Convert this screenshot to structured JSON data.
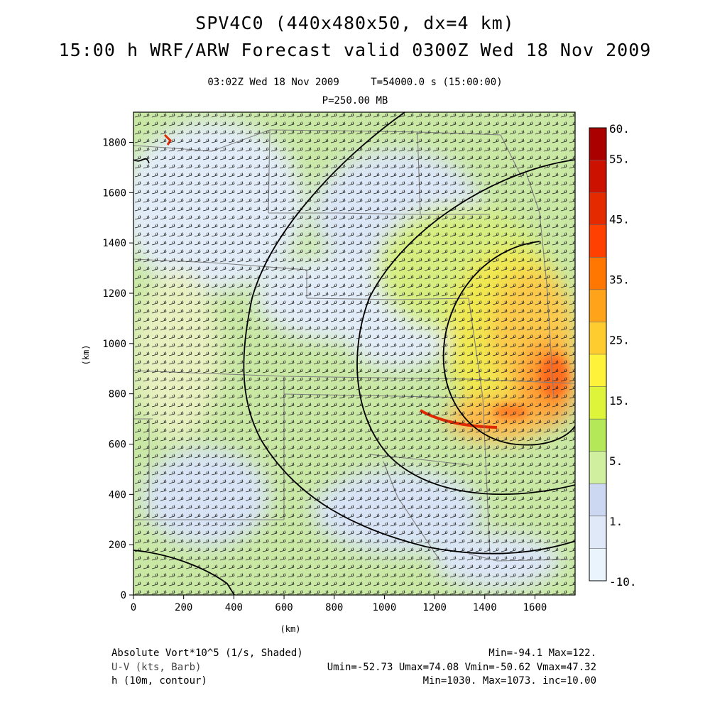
{
  "title_line1": "SPV4C0 (440x480x50, dx=4 km)",
  "title_line2": "15:00 h WRF/ARW Forecast valid 0300Z Wed 18 Nov 2009",
  "subtitle_time": "03:02Z Wed 18 Nov 2009",
  "subtitle_t": "T=54000.0 s (15:00:00)",
  "pressure_level": "P=250.00 MB",
  "chart_data": {
    "type": "heatmap",
    "xlabel": "(km)",
    "ylabel": "(km)",
    "xlim": [
      0,
      1760
    ],
    "ylim": [
      0,
      1920
    ],
    "x_ticks": [
      "0",
      "200",
      "400",
      "600",
      "800",
      "1000",
      "1200",
      "1400",
      "1600"
    ],
    "y_ticks": [
      "0",
      "200",
      "400",
      "600",
      "800",
      "1000",
      "1200",
      "1400",
      "1600",
      "1800"
    ],
    "colorbar": {
      "labels": [
        "60.",
        "55.",
        "45.",
        "35.",
        "25.",
        "15.",
        "5.",
        "1.",
        "-10."
      ],
      "colors": [
        "#aa0000",
        "#cc1100",
        "#e62a00",
        "#ff4000",
        "#ff7700",
        "#ffa41a",
        "#ffcc30",
        "#fff23a",
        "#ddf43a",
        "#b4e858",
        "#d0f0a0",
        "#ccd8f2",
        "#dfe9f8",
        "#eaf4fc"
      ]
    },
    "grid": false
  },
  "legend": {
    "field1_name": "Absolute Vort*10^5 (1/s, Shaded)",
    "field1_stats": "Min=-94.1 Max=122.",
    "field2_name": "U-V (kts, Barb)",
    "field2_stats": "Umin=-52.73 Umax=74.08 Vmin=-50.62 Vmax=47.32",
    "field3_name": "h (10m, contour)",
    "field3_stats": "Min=1030. Max=1073. inc=10.00"
  }
}
